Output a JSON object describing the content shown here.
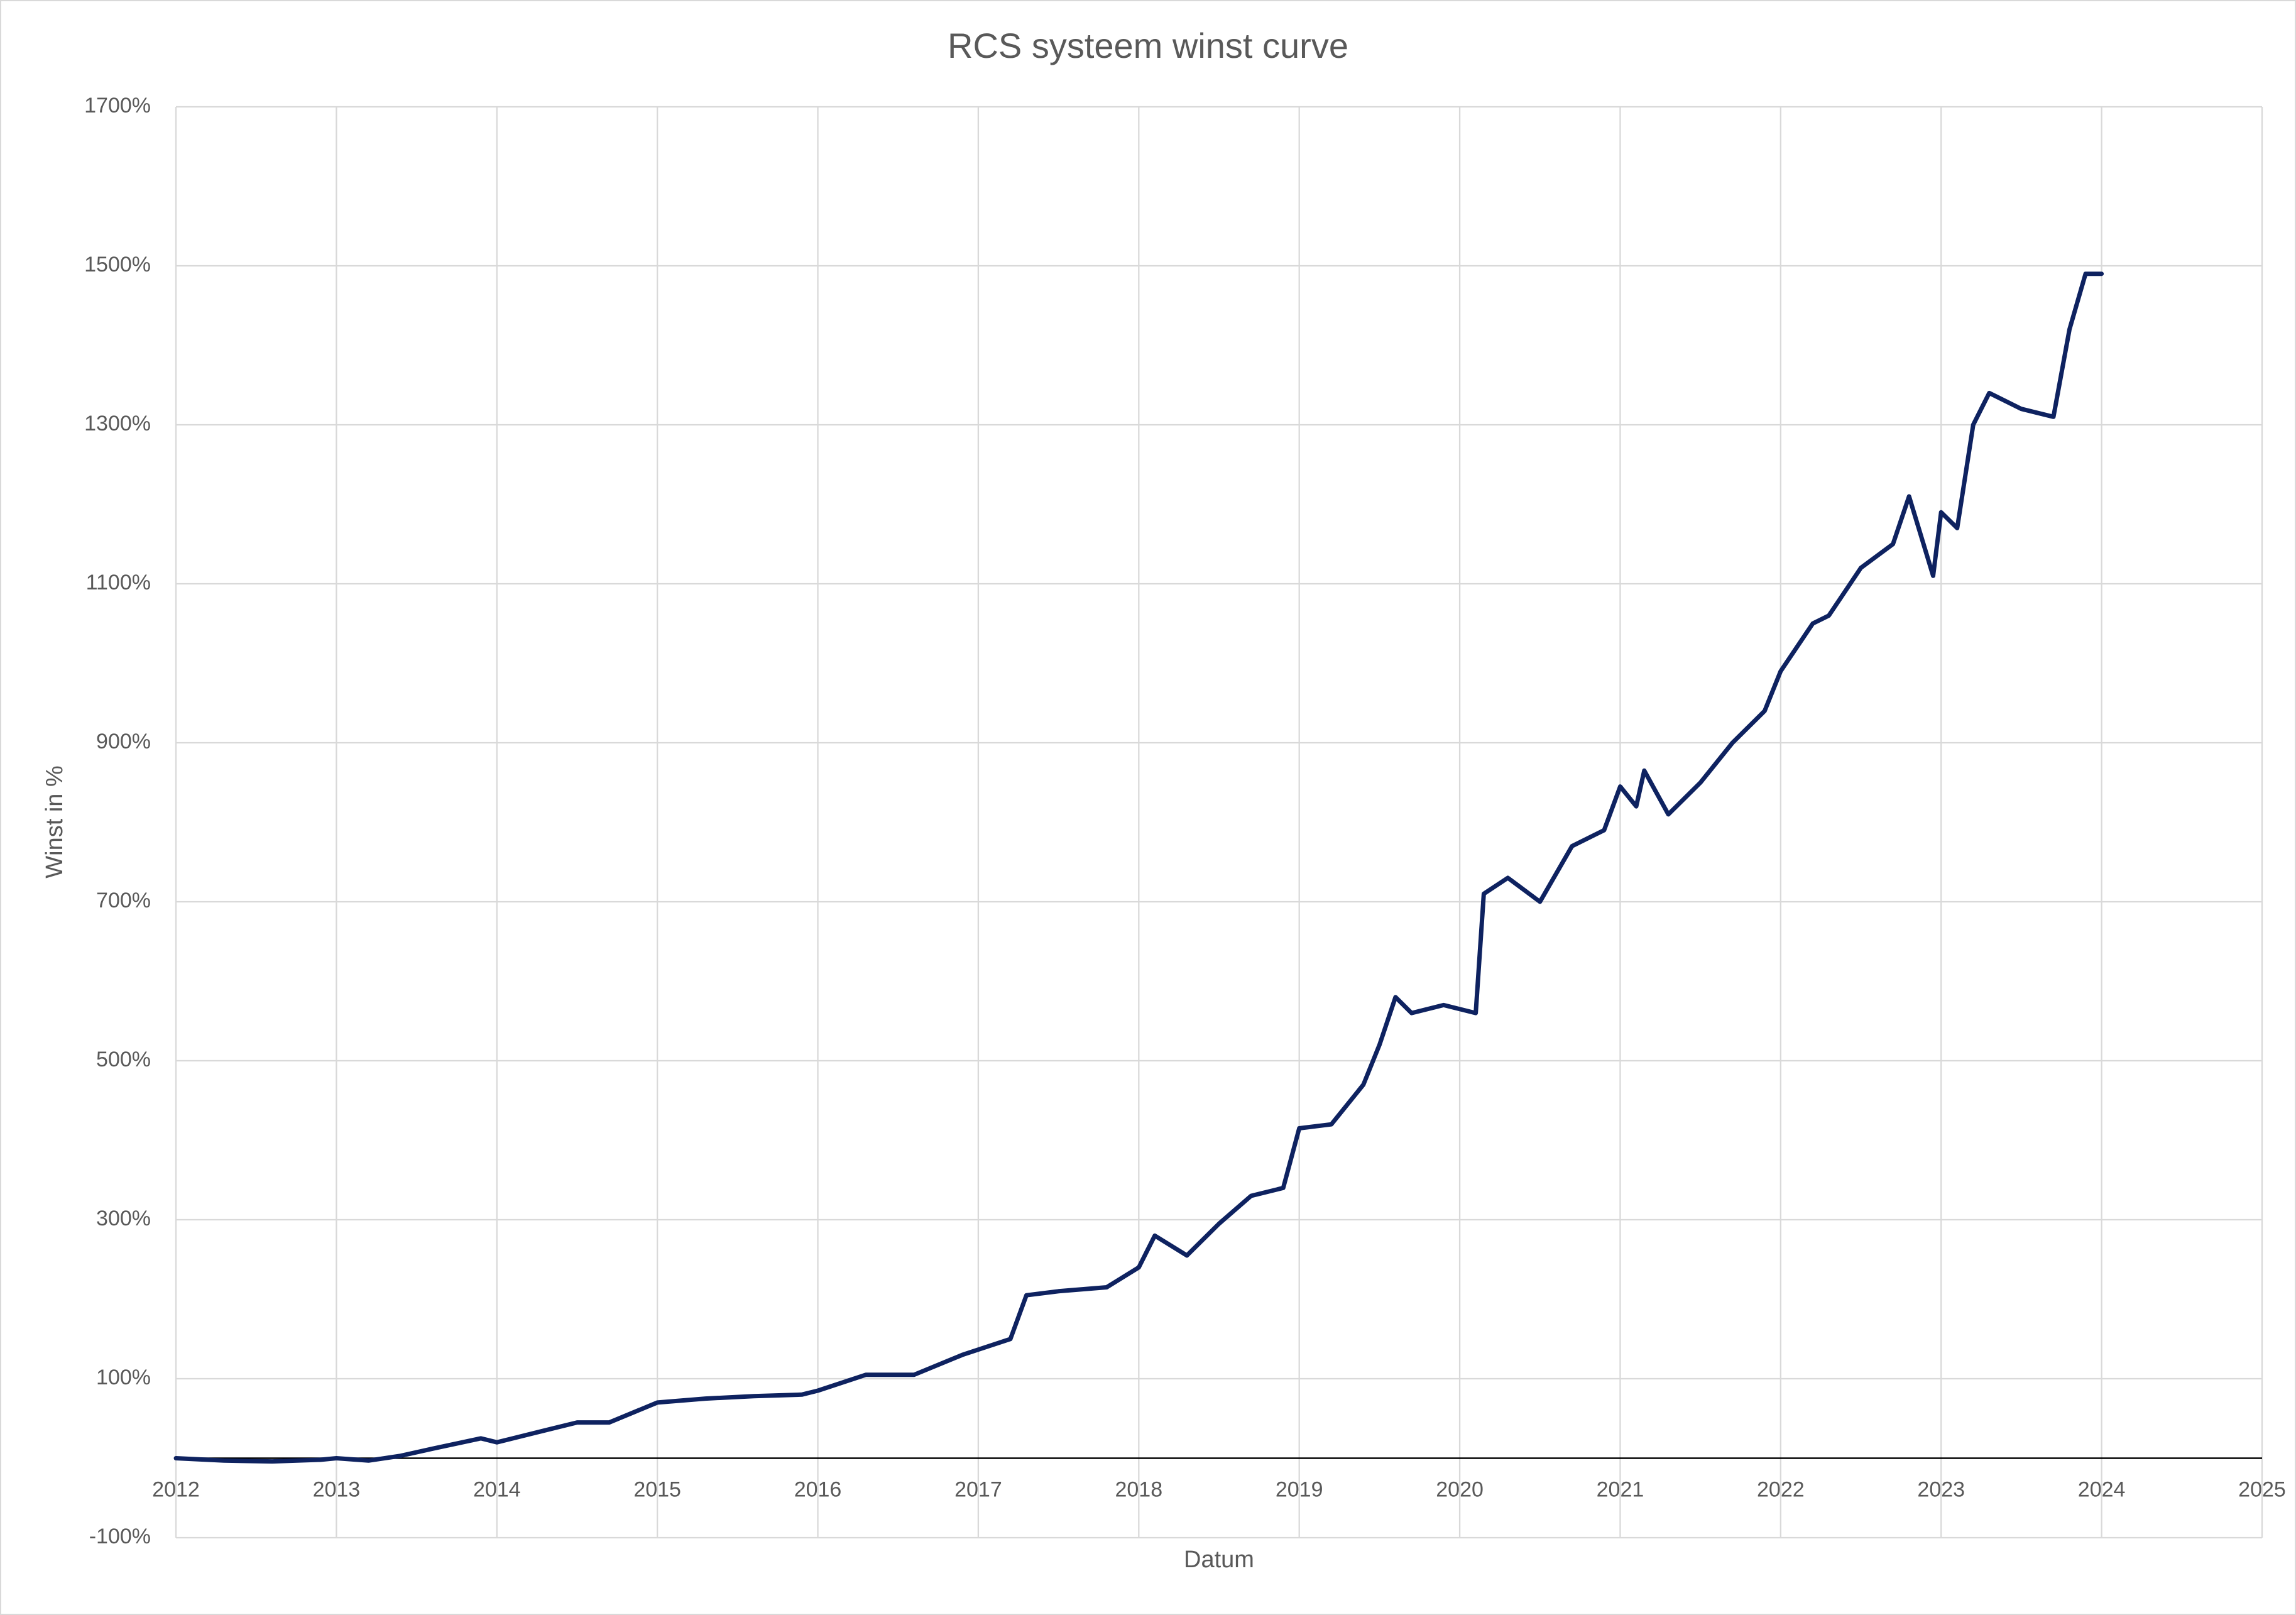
{
  "chart_data": {
    "type": "line",
    "title": "RCS systeem winst curve",
    "x_label": "Datum",
    "y_label": "Winst in %",
    "xlim": [
      2012,
      2025
    ],
    "xticks": [
      2012,
      2013,
      2014,
      2015,
      2016,
      2017,
      2018,
      2019,
      2020,
      2021,
      2022,
      2023,
      2024,
      2025
    ],
    "ylim": [
      -100,
      1700
    ],
    "yticks": [
      {
        "value": -100,
        "label": "-100%"
      },
      {
        "value": 100,
        "label": "100%"
      },
      {
        "value": 300,
        "label": "300%"
      },
      {
        "value": 500,
        "label": "500%"
      },
      {
        "value": 700,
        "label": "700%"
      },
      {
        "value": 900,
        "label": "900%"
      },
      {
        "value": 1100,
        "label": "1100%"
      },
      {
        "value": 1300,
        "label": "1300%"
      },
      {
        "value": 1500,
        "label": "1500%"
      },
      {
        "value": 1700,
        "label": "1700%"
      }
    ],
    "grid": true,
    "series": [
      {
        "color": "#0e2260",
        "x": [
          2012.0,
          2012.3,
          2012.6,
          2012.9,
          2013.0,
          2013.2,
          2013.4,
          2013.6,
          2013.9,
          2014.0,
          2014.3,
          2014.5,
          2014.7,
          2015.0,
          2015.3,
          2015.6,
          2015.9,
          2016.0,
          2016.3,
          2016.6,
          2016.9,
          2017.2,
          2017.3,
          2017.5,
          2017.8,
          2018.0,
          2018.1,
          2018.3,
          2018.5,
          2018.7,
          2018.9,
          2019.0,
          2019.2,
          2019.4,
          2019.5,
          2019.6,
          2019.7,
          2019.9,
          2020.1,
          2020.15,
          2020.3,
          2020.5,
          2020.7,
          2020.9,
          2021.0,
          2021.1,
          2021.15,
          2021.3,
          2021.5,
          2021.7,
          2021.9,
          2022.0,
          2022.2,
          2022.3,
          2022.5,
          2022.7,
          2022.8,
          2022.95,
          2023.0,
          2023.1,
          2023.2,
          2023.3,
          2023.5,
          2023.7,
          2023.8,
          2023.9,
          2024.0
        ],
        "values": [
          0,
          -3,
          -4,
          -2,
          0,
          -3,
          3,
          12,
          25,
          20,
          35,
          45,
          45,
          70,
          75,
          78,
          80,
          85,
          105,
          105,
          130,
          150,
          205,
          210,
          215,
          240,
          280,
          255,
          295,
          330,
          340,
          415,
          420,
          470,
          520,
          580,
          560,
          570,
          560,
          710,
          730,
          700,
          770,
          790,
          845,
          820,
          865,
          810,
          850,
          900,
          940,
          990,
          1050,
          1060,
          1120,
          1150,
          1210,
          1110,
          1190,
          1170,
          1300,
          1340,
          1320,
          1310,
          1420,
          1490,
          1490
        ]
      }
    ]
  }
}
